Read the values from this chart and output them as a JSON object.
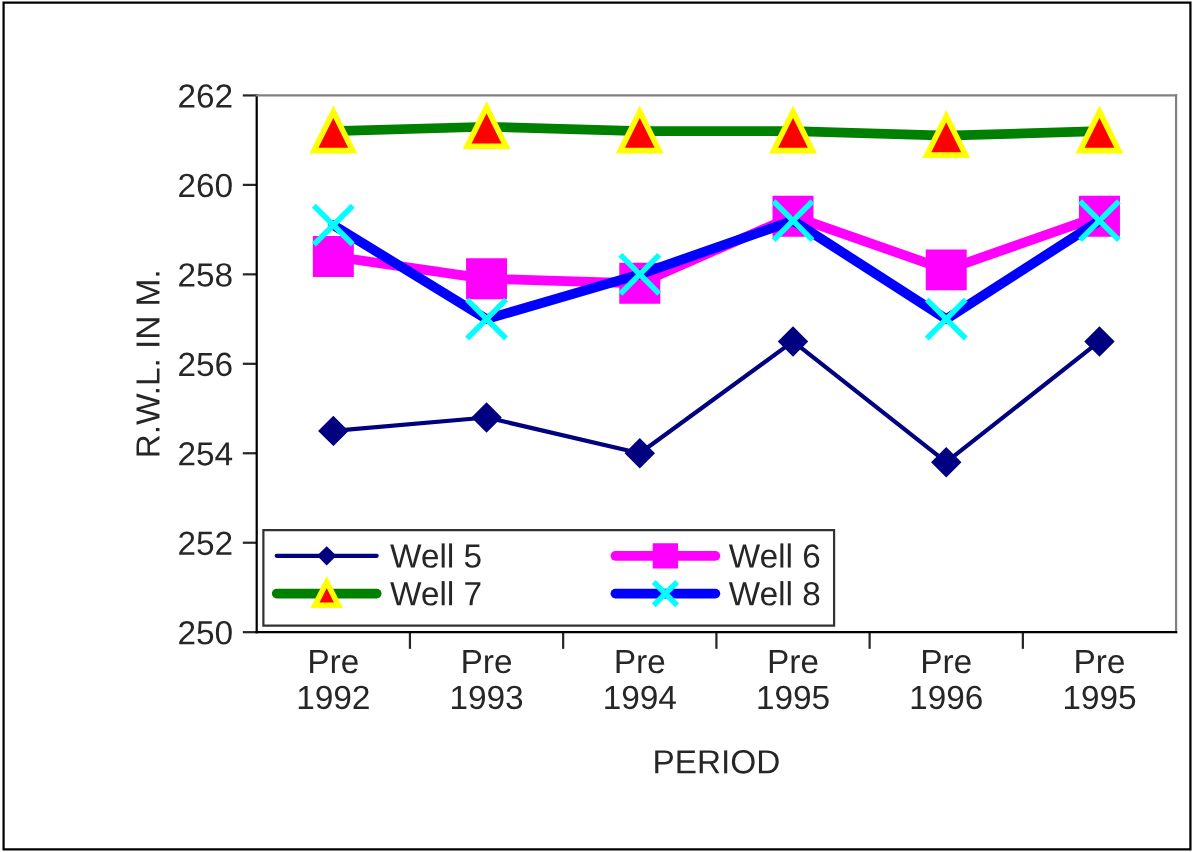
{
  "chart_data": {
    "type": "line",
    "xlabel": "PERIOD",
    "ylabel": "R.W.L. IN M.",
    "categories": [
      "Pre\n1992",
      "Pre\n1993",
      "Pre\n1994",
      "Pre\n1995",
      "Pre\n1996",
      "Pre\n1995"
    ],
    "series": [
      {
        "name": "Well 5",
        "color": "#000080",
        "marker": "diamond",
        "values": [
          254.5,
          254.8,
          254.0,
          256.5,
          253.8,
          256.5
        ]
      },
      {
        "name": "Well 6",
        "color": "#ff00ff",
        "marker": "square",
        "values": [
          258.4,
          257.9,
          257.8,
          259.3,
          258.1,
          259.3
        ]
      },
      {
        "name": "Well 7",
        "color": "#008000",
        "marker": "triangle",
        "values": [
          261.2,
          261.3,
          261.2,
          261.2,
          261.1,
          261.2
        ]
      },
      {
        "name": "Well 8",
        "color": "#0000ff",
        "marker": "cross",
        "values": [
          259.1,
          257.0,
          258.0,
          259.2,
          257.0,
          259.2
        ]
      }
    ],
    "ylim": [
      250,
      262
    ],
    "yticks": [
      250,
      252,
      254,
      256,
      258,
      260,
      262
    ],
    "grid": false,
    "legend": "bottom left",
    "line_style": "solid"
  }
}
